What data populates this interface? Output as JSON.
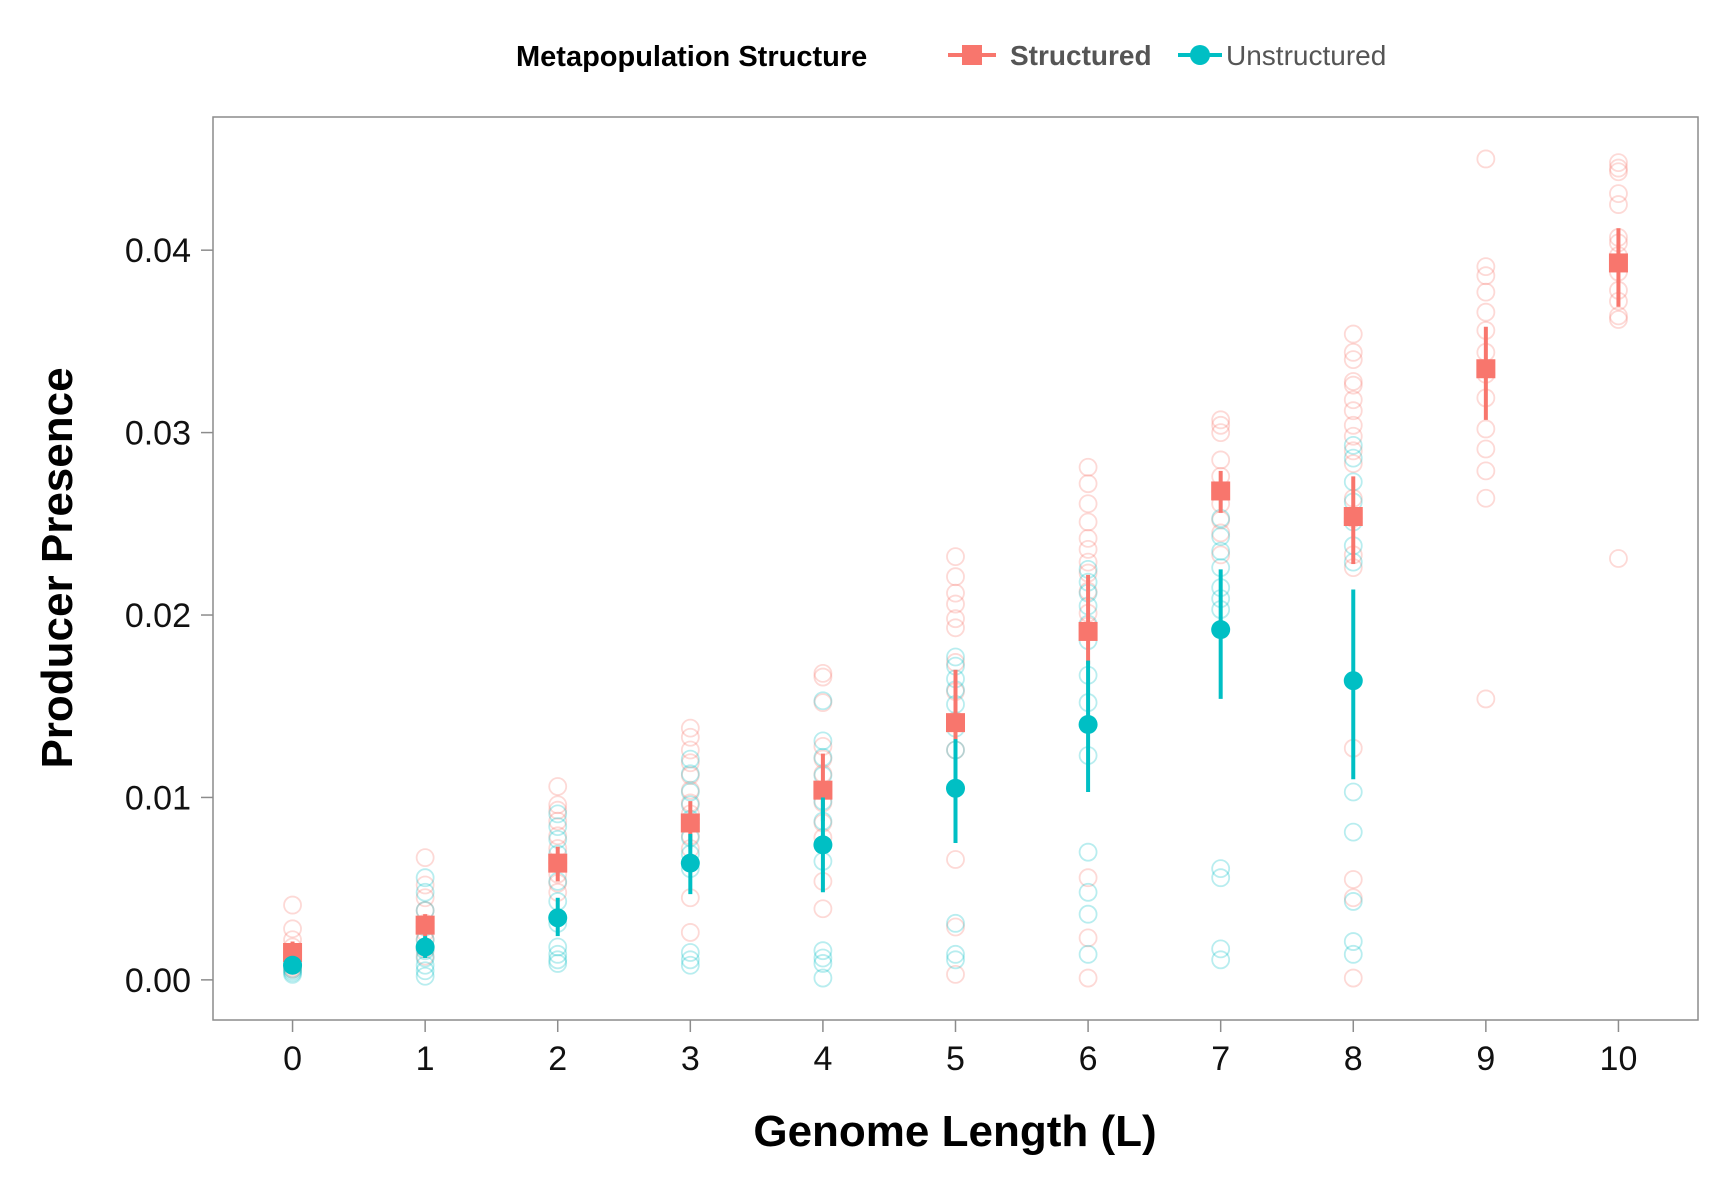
{
  "chart_data": {
    "type": "scatter",
    "title": "",
    "xlabel": "Genome Length (L)",
    "ylabel": "Producer Presence",
    "x_ticks": [
      "0",
      "1",
      "2",
      "3",
      "4",
      "5",
      "6",
      "7",
      "8",
      "9",
      "10"
    ],
    "y_ticks": [
      "0.00",
      "0.01",
      "0.02",
      "0.03",
      "0.04"
    ],
    "xlim": [
      -0.6,
      10.6
    ],
    "ylim": [
      -0.0022,
      0.0473
    ],
    "grid": false,
    "legend": {
      "title": "Metapopulation Structure",
      "placement": "top"
    },
    "series": [
      {
        "name": "Structured",
        "color": "#F8766D",
        "marker": "square",
        "x": [
          0,
          1,
          2,
          3,
          4,
          5,
          6,
          7,
          8,
          9,
          10
        ],
        "mean": [
          0.0015,
          0.003,
          0.0064,
          0.0086,
          0.0104,
          0.0141,
          0.0191,
          0.0268,
          0.0254,
          0.0335,
          0.0393
        ],
        "err_low": [
          0.0008,
          0.0024,
          0.0054,
          0.0072,
          0.0087,
          0.0117,
          0.0173,
          0.0256,
          0.0228,
          0.0307,
          0.0369
        ],
        "err_high": [
          0.0021,
          0.0036,
          0.0073,
          0.0098,
          0.0124,
          0.017,
          0.0222,
          0.0279,
          0.0276,
          0.0358,
          0.0412
        ],
        "replicates": [
          [
            0.0041,
            0.0028,
            0.0022,
            0.0018,
            0.0014,
            0.0011,
            0.0009,
            0.0007,
            0.0006
          ],
          [
            0.0067,
            0.0052,
            0.0045,
            0.0038,
            0.0031,
            0.0026,
            0.0022,
            0.0017,
            0.0013
          ],
          [
            0.0106,
            0.0096,
            0.0093,
            0.0087,
            0.0079,
            0.0072,
            0.0064,
            0.0058,
            0.0053,
            0.0048
          ],
          [
            0.0138,
            0.0133,
            0.0126,
            0.0119,
            0.0112,
            0.0104,
            0.0097,
            0.0091,
            0.0086,
            0.0079,
            0.0072,
            0.0045,
            0.0026
          ],
          [
            0.0168,
            0.0166,
            0.0152,
            0.0128,
            0.0121,
            0.0113,
            0.0104,
            0.0097,
            0.0086,
            0.0078,
            0.0054,
            0.0039
          ],
          [
            0.0232,
            0.0221,
            0.0212,
            0.0206,
            0.0198,
            0.0193,
            0.0174,
            0.0158,
            0.0142,
            0.0126,
            0.0066,
            0.0029,
            0.0003
          ],
          [
            0.0281,
            0.0272,
            0.0261,
            0.0251,
            0.0242,
            0.0236,
            0.0229,
            0.0223,
            0.0213,
            0.0201,
            0.0194,
            0.0056,
            0.0023,
            0.0001
          ],
          [
            0.0307,
            0.0304,
            0.03,
            0.0285,
            0.0276,
            0.0268,
            0.0261,
            0.0252,
            0.0245,
            0.0233
          ],
          [
            0.0354,
            0.0344,
            0.034,
            0.0328,
            0.0326,
            0.0318,
            0.0312,
            0.0304,
            0.0298,
            0.029,
            0.0283,
            0.0264,
            0.0253,
            0.0233,
            0.0226,
            0.0127,
            0.0055,
            0.0045,
            0.0001
          ],
          [
            0.045,
            0.0391,
            0.0386,
            0.0377,
            0.0366,
            0.0356,
            0.0344,
            0.0332,
            0.0319,
            0.0302,
            0.0291,
            0.0279,
            0.0264,
            0.0154
          ],
          [
            0.0448,
            0.0445,
            0.0443,
            0.0431,
            0.0425,
            0.0407,
            0.0404,
            0.0397,
            0.0388,
            0.0378,
            0.0372,
            0.0364,
            0.0362,
            0.0231
          ]
        ]
      },
      {
        "name": "Unstructured",
        "color": "#00BFC4",
        "marker": "circle",
        "x": [
          0,
          1,
          2,
          3,
          4,
          5,
          6,
          7,
          8
        ],
        "mean": [
          0.0008,
          0.0018,
          0.0034,
          0.0064,
          0.0074,
          0.0105,
          0.014,
          0.0192,
          0.0164
        ],
        "err_low": [
          0.0004,
          0.0012,
          0.0024,
          0.0047,
          0.0048,
          0.0075,
          0.0103,
          0.0154,
          0.011
        ],
        "err_high": [
          0.0012,
          0.0024,
          0.0045,
          0.008,
          0.01,
          0.0132,
          0.0175,
          0.0225,
          0.0214
        ],
        "replicates": [
          [
            0.0012,
            0.001,
            0.0008,
            0.0006,
            0.0005,
            0.0004,
            0.0003
          ],
          [
            0.0056,
            0.0048,
            0.0038,
            0.0029,
            0.0022,
            0.0016,
            0.0012,
            0.0008,
            0.0005,
            0.0002
          ],
          [
            0.0091,
            0.0084,
            0.0077,
            0.0069,
            0.0054,
            0.0043,
            0.0031,
            0.0018,
            0.0014,
            0.0011,
            0.0009
          ],
          [
            0.0121,
            0.0113,
            0.0103,
            0.0096,
            0.0088,
            0.0078,
            0.0069,
            0.0061,
            0.0015,
            0.0011,
            0.0008
          ],
          [
            0.0153,
            0.0131,
            0.0122,
            0.0112,
            0.0098,
            0.0087,
            0.0065,
            0.0016,
            0.0012,
            0.0009,
            0.0001
          ],
          [
            0.0177,
            0.0172,
            0.0165,
            0.0159,
            0.0151,
            0.0138,
            0.0126,
            0.0031,
            0.0014,
            0.0011
          ],
          [
            0.0225,
            0.0218,
            0.0212,
            0.0205,
            0.0195,
            0.0186,
            0.0167,
            0.0152,
            0.0123,
            0.007,
            0.0048,
            0.0036,
            0.0014
          ],
          [
            0.0253,
            0.0243,
            0.0235,
            0.0226,
            0.0215,
            0.0209,
            0.0203,
            0.0061,
            0.0056,
            0.0017,
            0.0011
          ],
          [
            0.0293,
            0.0286,
            0.0273,
            0.0262,
            0.0251,
            0.0238,
            0.0229,
            0.0103,
            0.0081,
            0.0043,
            0.0021,
            0.0014
          ]
        ]
      }
    ]
  }
}
